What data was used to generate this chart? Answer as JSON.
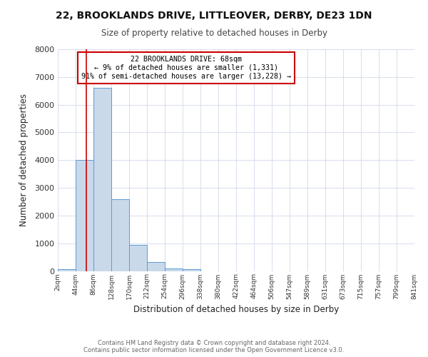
{
  "title": "22, BROOKLANDS DRIVE, LITTLEOVER, DERBY, DE23 1DN",
  "subtitle": "Size of property relative to detached houses in Derby",
  "xlabel": "Distribution of detached houses by size in Derby",
  "ylabel": "Number of detached properties",
  "bar_values": [
    70,
    4000,
    6600,
    2600,
    950,
    320,
    100,
    60,
    0,
    0,
    0,
    0,
    0,
    0,
    0,
    0,
    0,
    0,
    0,
    0
  ],
  "bin_edges": [
    2,
    44,
    86,
    128,
    170,
    212,
    254,
    296,
    338,
    380,
    422,
    464,
    506,
    547,
    589,
    631,
    673,
    715,
    757,
    799,
    841
  ],
  "bin_labels": [
    "2sqm",
    "44sqm",
    "86sqm",
    "128sqm",
    "170sqm",
    "212sqm",
    "254sqm",
    "296sqm",
    "338sqm",
    "380sqm",
    "422sqm",
    "464sqm",
    "506sqm",
    "547sqm",
    "589sqm",
    "631sqm",
    "673sqm",
    "715sqm",
    "757sqm",
    "799sqm",
    "841sqm"
  ],
  "property_size": 68,
  "bar_color": "#c9d9ea",
  "bar_edge_color": "#5b9bd5",
  "red_line_color": "#cc0000",
  "annotation_text": "22 BROOKLANDS DRIVE: 68sqm\n← 9% of detached houses are smaller (1,331)\n91% of semi-detached houses are larger (13,228) →",
  "annotation_box_color": "#ffffff",
  "annotation_box_edge": "#cc0000",
  "ylim": [
    0,
    8000
  ],
  "yticks": [
    0,
    1000,
    2000,
    3000,
    4000,
    5000,
    6000,
    7000,
    8000
  ],
  "background_color": "#ffffff",
  "grid_color": "#d0d8e8",
  "footer_line1": "Contains HM Land Registry data © Crown copyright and database right 2024.",
  "footer_line2": "Contains public sector information licensed under the Open Government Licence v3.0."
}
